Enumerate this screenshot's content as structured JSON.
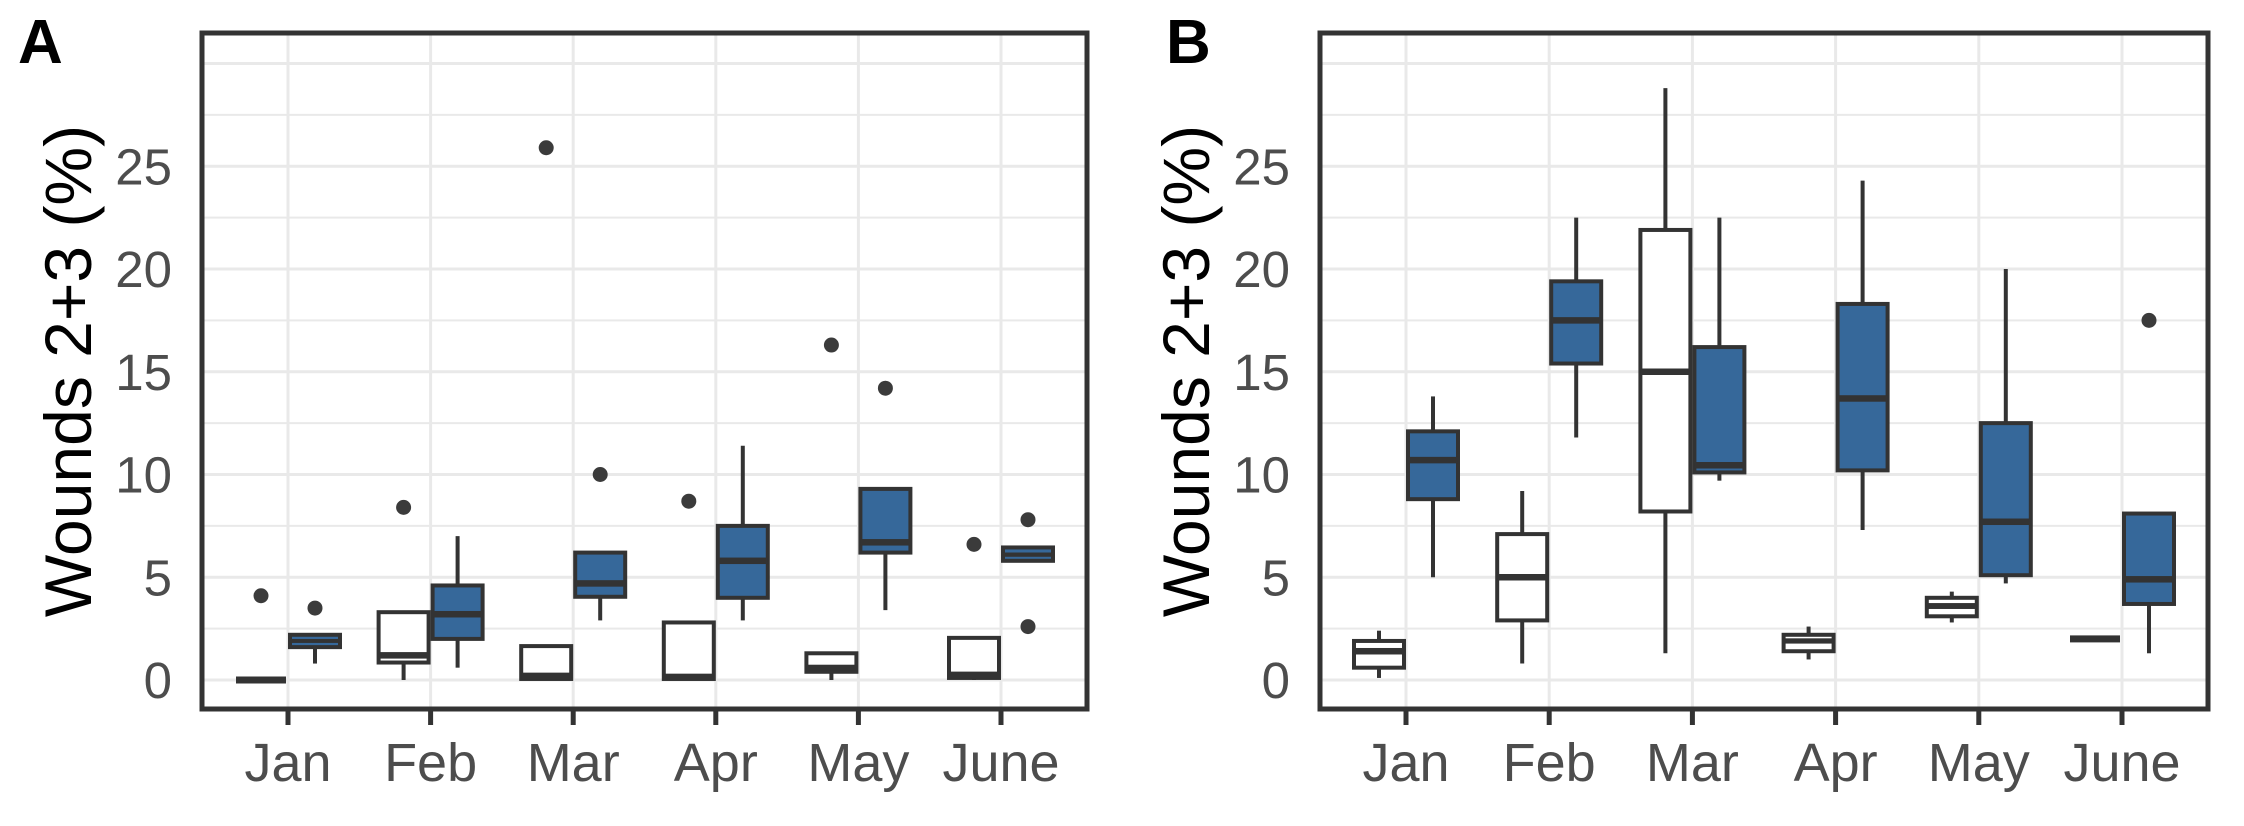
{
  "figure": {
    "panels": [
      {
        "label": "A",
        "y_axis_title": "Wounds 2+3 (%)"
      },
      {
        "label": "B",
        "y_axis_title": "Wounds 2+3 (%)"
      }
    ]
  },
  "style": {
    "box_outline": "#333333",
    "blue_fill": "#36689a",
    "white_fill": "#ffffff",
    "grid_color": "#e9e9e9",
    "tick_text_color": "#4d4d4d",
    "outlier_color": "#3b3b3b",
    "panel_border_color": "#333333",
    "background": "#ffffff"
  },
  "chart_data": [
    {
      "type": "boxplot",
      "panel_label": "A",
      "ylabel": "Wounds 2+3 (%)",
      "categories": [
        "Jan",
        "Feb",
        "Mar",
        "Apr",
        "May",
        "June"
      ],
      "y_ticks": [
        0,
        5,
        10,
        15,
        20,
        25
      ],
      "y_minor_ticks": [
        2.5,
        7.5,
        12.5,
        17.5,
        22.5,
        27.5
      ],
      "y_major_gridlines": [
        0,
        5,
        10,
        15,
        20,
        25,
        30
      ],
      "ylim": [
        -1.4,
        31.5
      ],
      "grid": true,
      "legend": "none",
      "series": [
        {
          "name": "group-1-white",
          "fill": "#ffffff",
          "boxes": [
            {
              "category": "Jan",
              "whisker_low": 0,
              "q1": 0,
              "median": 0,
              "q3": 0,
              "whisker_high": 0,
              "outliers": [
                4.1
              ]
            },
            {
              "category": "Feb",
              "whisker_low": 0,
              "q1": 0.85,
              "median": 1.2,
              "q3": 3.3,
              "whisker_high": 3.3,
              "outliers": [
                8.4
              ]
            },
            {
              "category": "Mar",
              "whisker_low": 0,
              "q1": 0.05,
              "median": 0.2,
              "q3": 1.65,
              "whisker_high": 1.65,
              "outliers": [
                25.9
              ]
            },
            {
              "category": "Apr",
              "whisker_low": 0,
              "q1": 0.05,
              "median": 0.15,
              "q3": 2.8,
              "whisker_high": 2.8,
              "outliers": [
                8.7
              ]
            },
            {
              "category": "May",
              "whisker_low": 0,
              "q1": 0.4,
              "median": 0.6,
              "q3": 1.3,
              "whisker_high": 1.3,
              "outliers": [
                16.3
              ]
            },
            {
              "category": "June",
              "whisker_low": 0,
              "q1": 0.1,
              "median": 0.25,
              "q3": 2.05,
              "whisker_high": 2.05,
              "outliers": [
                6.6
              ]
            }
          ]
        },
        {
          "name": "group-2-blue",
          "fill": "#36689a",
          "boxes": [
            {
              "category": "Jan",
              "whisker_low": 0.8,
              "q1": 1.6,
              "median": 1.9,
              "q3": 2.2,
              "whisker_high": 2.2,
              "outliers": [
                3.5
              ]
            },
            {
              "category": "Feb",
              "whisker_low": 0.6,
              "q1": 2.0,
              "median": 3.2,
              "q3": 4.6,
              "whisker_high": 7.0,
              "outliers": []
            },
            {
              "category": "Mar",
              "whisker_low": 2.9,
              "q1": 4.05,
              "median": 4.7,
              "q3": 6.2,
              "whisker_high": 6.2,
              "outliers": [
                10.0
              ]
            },
            {
              "category": "Apr",
              "whisker_low": 2.9,
              "q1": 4.0,
              "median": 5.8,
              "q3": 7.5,
              "whisker_high": 11.4,
              "outliers": []
            },
            {
              "category": "May",
              "whisker_low": 3.4,
              "q1": 6.2,
              "median": 6.7,
              "q3": 9.3,
              "whisker_high": 9.3,
              "outliers": [
                14.2
              ]
            },
            {
              "category": "June",
              "whisker_low": 5.8,
              "q1": 5.8,
              "median": 6.1,
              "q3": 6.45,
              "whisker_high": 6.45,
              "outliers": [
                7.8,
                2.6
              ]
            }
          ]
        }
      ]
    },
    {
      "type": "boxplot",
      "panel_label": "B",
      "ylabel": "Wounds 2+3 (%)",
      "categories": [
        "Jan",
        "Feb",
        "Mar",
        "Apr",
        "May",
        "June"
      ],
      "y_ticks": [
        0,
        5,
        10,
        15,
        20,
        25
      ],
      "y_minor_ticks": [
        2.5,
        7.5,
        12.5,
        17.5,
        22.5,
        27.5
      ],
      "y_major_gridlines": [
        0,
        5,
        10,
        15,
        20,
        25,
        30
      ],
      "ylim": [
        -1.4,
        31.5
      ],
      "grid": true,
      "legend": "none",
      "series": [
        {
          "name": "group-1-white",
          "fill": "#ffffff",
          "boxes": [
            {
              "category": "Jan",
              "whisker_low": 0.1,
              "q1": 0.6,
              "median": 1.4,
              "q3": 1.9,
              "whisker_high": 2.4,
              "outliers": []
            },
            {
              "category": "Feb",
              "whisker_low": 0.8,
              "q1": 2.9,
              "median": 5.0,
              "q3": 7.1,
              "whisker_high": 9.2,
              "outliers": []
            },
            {
              "category": "Mar",
              "whisker_low": 1.3,
              "q1": 8.2,
              "median": 15.0,
              "q3": 21.9,
              "whisker_high": 28.8,
              "outliers": []
            },
            {
              "category": "Apr",
              "whisker_low": 1.0,
              "q1": 1.4,
              "median": 1.9,
              "q3": 2.2,
              "whisker_high": 2.6,
              "outliers": []
            },
            {
              "category": "May",
              "whisker_low": 2.8,
              "q1": 3.1,
              "median": 3.6,
              "q3": 4.0,
              "whisker_high": 4.3,
              "outliers": []
            },
            {
              "category": "June",
              "whisker_low": 2.0,
              "q1": 2.0,
              "median": 2.0,
              "q3": 2.0,
              "whisker_high": 2.0,
              "outliers": []
            }
          ]
        },
        {
          "name": "group-2-blue",
          "fill": "#36689a",
          "boxes": [
            {
              "category": "Jan",
              "whisker_low": 5.0,
              "q1": 8.8,
              "median": 10.7,
              "q3": 12.1,
              "whisker_high": 13.8,
              "outliers": []
            },
            {
              "category": "Feb",
              "whisker_low": 11.8,
              "q1": 15.4,
              "median": 17.5,
              "q3": 19.4,
              "whisker_high": 22.5,
              "outliers": []
            },
            {
              "category": "Mar",
              "whisker_low": 9.7,
              "q1": 10.1,
              "median": 10.45,
              "q3": 16.2,
              "whisker_high": 22.5,
              "outliers": []
            },
            {
              "category": "Apr",
              "whisker_low": 7.3,
              "q1": 10.2,
              "median": 13.7,
              "q3": 18.3,
              "whisker_high": 24.3,
              "outliers": []
            },
            {
              "category": "May",
              "whisker_low": 4.7,
              "q1": 5.1,
              "median": 7.7,
              "q3": 12.5,
              "whisker_high": 20.0,
              "outliers": []
            },
            {
              "category": "June",
              "whisker_low": 1.3,
              "q1": 3.7,
              "median": 4.9,
              "q3": 8.1,
              "whisker_high": 8.1,
              "outliers": [
                17.5
              ]
            }
          ]
        }
      ]
    }
  ]
}
